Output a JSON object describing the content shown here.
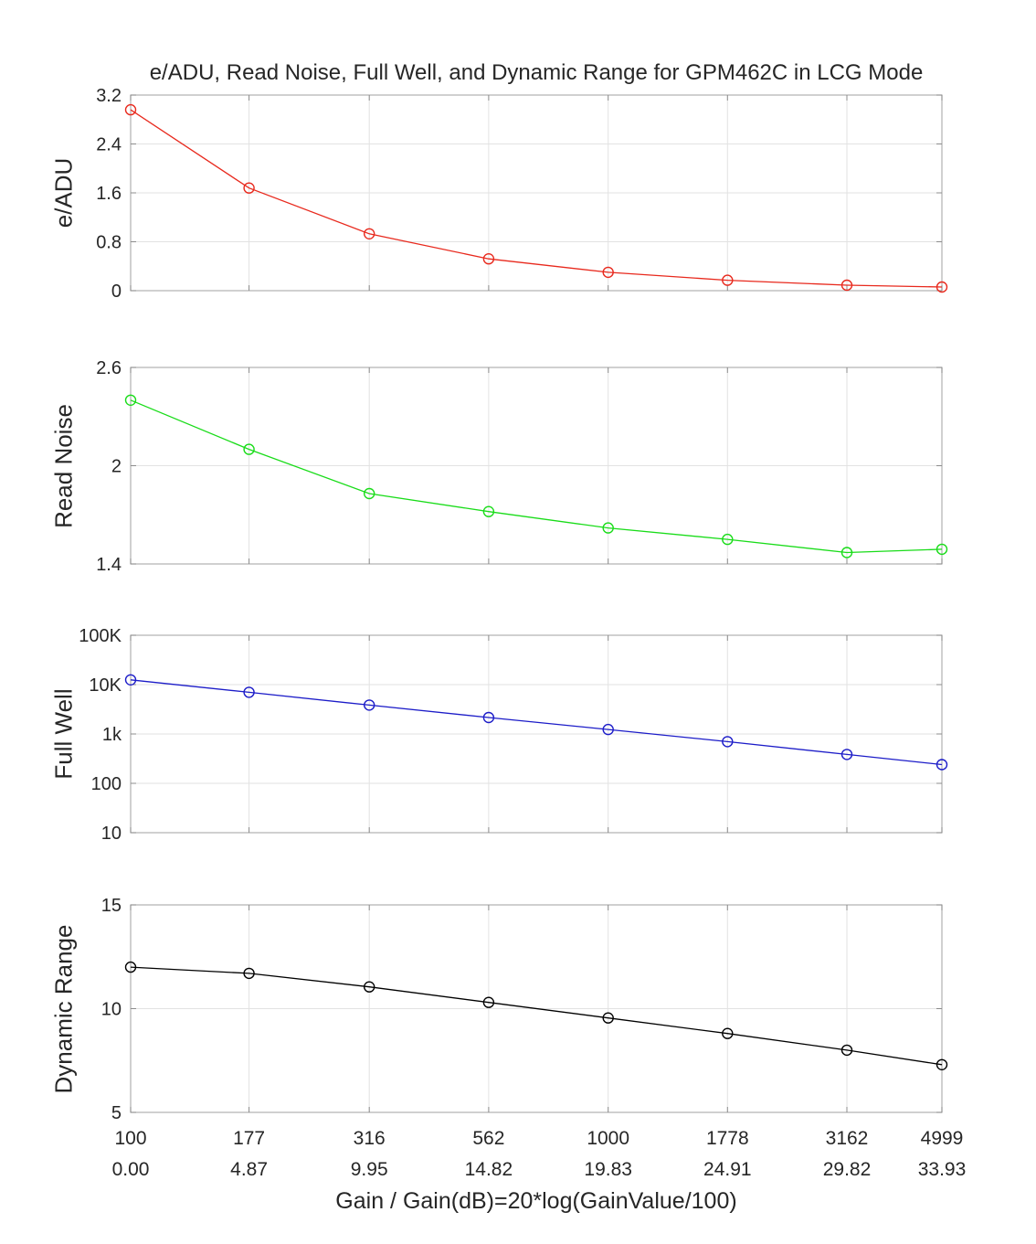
{
  "title": "e/ADU, Read Noise, Full Well, and Dynamic Range for GPM462C in LCG Mode",
  "x_axis": {
    "label": "Gain / Gain(dB)=20*log(GainValue/100)",
    "scale": "log",
    "x": [
      100,
      177,
      316,
      562,
      1000,
      1778,
      3162,
      4999
    ],
    "tick_row_gain": [
      "100",
      "177",
      "316",
      "562",
      "1000",
      "1778",
      "3162",
      "4999"
    ],
    "tick_row_db": [
      "0.00",
      "4.87",
      "9.95",
      "14.82",
      "19.83",
      "24.91",
      "29.82",
      "33.93"
    ]
  },
  "style": {
    "grid_color": "#e2e2e2",
    "box_color": "#b0b0b0",
    "tick_color": "#8c8c8c",
    "text_color": "#262626",
    "background": "#ffffff"
  },
  "chart_data": [
    {
      "type": "line",
      "name": "e-adu",
      "ylabel": "e/ADU",
      "color": "#e8291d",
      "marker": "circle",
      "yscale": "linear",
      "ylim": [
        0,
        3.2
      ],
      "yticks": [
        0,
        0.8,
        1.6,
        2.4,
        3.2
      ],
      "ytick_labels": [
        "0",
        "0.8",
        "1.6",
        "2.4",
        "3.2"
      ],
      "values": [
        2.96,
        1.68,
        0.93,
        0.52,
        0.3,
        0.17,
        0.09,
        0.06
      ]
    },
    {
      "type": "line",
      "name": "read-noise",
      "ylabel": "Read Noise",
      "color": "#19dc19",
      "marker": "circle",
      "yscale": "linear",
      "ylim": [
        1.4,
        2.6
      ],
      "yticks": [
        1.4,
        2,
        2.6
      ],
      "ytick_labels": [
        "1.4",
        "2",
        "2.6"
      ],
      "values": [
        2.4,
        2.1,
        1.83,
        1.72,
        1.62,
        1.55,
        1.47,
        1.49
      ]
    },
    {
      "type": "line",
      "name": "full-well",
      "ylabel": "Full Well",
      "color": "#1c1cc8",
      "marker": "circle",
      "yscale": "log",
      "ylim": [
        10,
        100000
      ],
      "yticks": [
        10,
        100,
        1000,
        10000,
        100000
      ],
      "ytick_labels": [
        "10",
        "100",
        "1k",
        "10K",
        "100K"
      ],
      "values": [
        12500,
        7000,
        3850,
        2150,
        1230,
        700,
        385,
        240
      ]
    },
    {
      "type": "line",
      "name": "dynamic-range",
      "ylabel": "Dynamic Range",
      "color": "#000000",
      "marker": "circle",
      "yscale": "linear",
      "ylim": [
        5,
        15
      ],
      "yticks": [
        5,
        10,
        15
      ],
      "ytick_labels": [
        "5",
        "10",
        "15"
      ],
      "values": [
        12.0,
        11.7,
        11.05,
        10.3,
        9.55,
        8.8,
        8.0,
        7.3
      ]
    }
  ]
}
